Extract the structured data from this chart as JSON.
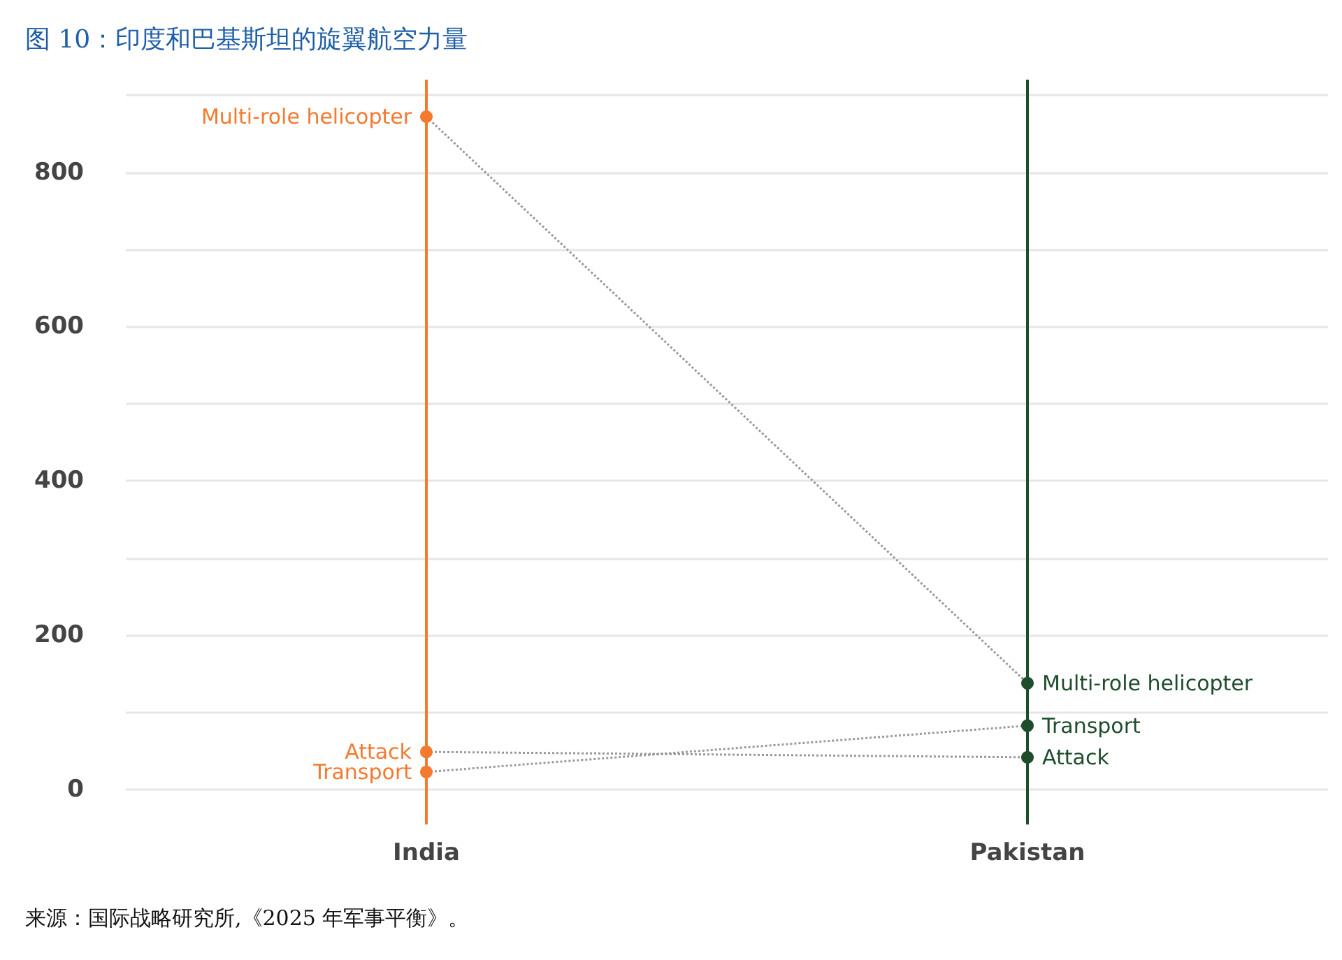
{
  "chart_data": {
    "type": "line",
    "title": "图 10：印度和巴基斯坦的旋翼航空力量",
    "categories": [
      "India",
      "Pakistan"
    ],
    "series": [
      {
        "name": "Multi-role helicopter",
        "color": "#999999",
        "colors": [
          "#f37a2f",
          "#1e4d2b"
        ],
        "values": [
          872,
          138
        ]
      },
      {
        "name": "Attack",
        "color": "#999999",
        "colors": [
          "#f37a2f",
          "#1e4d2b"
        ],
        "values": [
          49,
          42
        ]
      },
      {
        "name": "Transport",
        "color": "#999999",
        "colors": [
          "#f37a2f",
          "#1e4d2b"
        ],
        "values": [
          23,
          83
        ]
      }
    ],
    "ylim": [
      -45,
      920
    ],
    "yticks": [
      0,
      {
        "value": 100,
        "label": null
      },
      200,
      {
        "value": 300,
        "label": null
      },
      400,
      {
        "value": 500,
        "label": null
      },
      600,
      {
        "value": 700,
        "label": null
      },
      800,
      {
        "value": 900,
        "label": null
      }
    ],
    "ref_lines": [
      {
        "axis": "x",
        "value": "India",
        "color": "#f37a2f",
        "line_style": "solid"
      },
      {
        "axis": "x",
        "value": "Pakistan",
        "color": "#1e4d2b",
        "line_style": "solid"
      }
    ],
    "grid": "y",
    "marker": "circle",
    "line_style": "dotted",
    "annotations": [
      "来源：国际战略研究所,《2025 年军事平衡》。"
    ]
  }
}
